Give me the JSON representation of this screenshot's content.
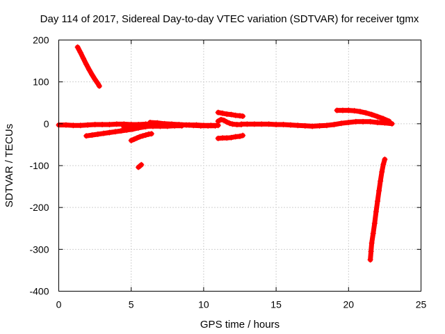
{
  "chart_data": {
    "type": "scatter",
    "title": "Day 114 of 2017, Sidereal Day-to-day VTEC variation (SDTVAR) for receiver tgmx",
    "xlabel": "GPS time / hours",
    "ylabel": "SDTVAR / TECUs",
    "xlim": [
      0,
      25
    ],
    "ylim": [
      -400,
      200
    ],
    "x_ticks": [
      0,
      5,
      10,
      15,
      20,
      25
    ],
    "y_ticks": [
      -400,
      -300,
      -200,
      -100,
      0,
      100,
      200
    ],
    "grid": true,
    "legend": "none",
    "marker": "+",
    "color": "#ff0000",
    "series": [
      {
        "x": [
          1.3,
          1.5,
          1.7,
          1.9,
          2.1,
          2.3,
          2.5,
          2.7,
          2.8
        ],
        "y": [
          183,
          170,
          156,
          142,
          129,
          117,
          106,
          96,
          90
        ]
      },
      {
        "x": [
          0,
          0.5,
          1.0,
          1.5,
          2.0,
          2.5,
          3.0,
          3.5,
          4.0,
          4.5,
          5.0,
          5.5,
          6.0,
          6.5,
          7.0,
          7.5,
          8.0,
          8.5,
          9.0,
          9.5,
          10.0,
          10.5,
          11.0
        ],
        "y": [
          -3,
          -3,
          -4,
          -4,
          -3,
          -2,
          -2,
          -2,
          -1,
          -1,
          -2,
          -2,
          -1,
          -1,
          -2,
          -2,
          -3,
          -3,
          -3,
          -3,
          -4,
          -4,
          -4
        ]
      },
      {
        "x": [
          1.9,
          2.3,
          2.7,
          3.1,
          3.5,
          3.9,
          4.3,
          4.7,
          5.1,
          5.5,
          6.0,
          6.5
        ],
        "y": [
          -29,
          -27,
          -25,
          -23,
          -21,
          -19,
          -17,
          -15,
          -13,
          -10,
          -7,
          -5
        ]
      },
      {
        "x": [
          5.0,
          5.2,
          5.4,
          5.6,
          5.8,
          6.0,
          6.2,
          6.4
        ],
        "y": [
          -40,
          -37,
          -34,
          -31,
          -29,
          -27,
          -25,
          -24
        ]
      },
      {
        "x": [
          5.5,
          5.6,
          5.7
        ],
        "y": [
          -104,
          -101,
          -98
        ]
      },
      {
        "x": [
          6.3,
          6.8,
          7.3,
          7.8,
          8.3,
          8.8,
          9.3,
          9.8,
          10.3,
          10.8
        ],
        "y": [
          3,
          2,
          0,
          -1,
          -2,
          -3,
          -4,
          -5,
          -5,
          -5
        ]
      },
      {
        "x": [
          4.5,
          5.0,
          5.5,
          6.0,
          6.5,
          7.0,
          7.5,
          8.0,
          8.5
        ],
        "y": [
          -8,
          -8,
          -7,
          -6,
          -6,
          -6,
          -6,
          -5,
          -5
        ]
      },
      {
        "x": [
          11.0,
          11.3,
          11.6,
          11.9,
          12.2,
          12.5,
          12.7
        ],
        "y": [
          27,
          25,
          23,
          22,
          20,
          19,
          18
        ]
      },
      {
        "x": [
          11.0,
          11.3,
          11.6,
          11.9,
          12.2,
          12.5,
          12.7
        ],
        "y": [
          -35,
          -34,
          -34,
          -33,
          -31,
          -30,
          -28
        ]
      },
      {
        "x": [
          11.0,
          11.2,
          11.4,
          11.6,
          11.8,
          12.0,
          12.3,
          12.6
        ],
        "y": [
          6,
          10,
          8,
          4,
          1,
          -1,
          -2,
          -2
        ]
      },
      {
        "x": [
          12.6,
          13.0,
          13.5,
          14.0,
          14.5,
          15.0,
          15.5,
          16.0,
          16.5,
          17.0,
          17.5,
          18.0,
          18.5,
          19.0,
          19.5,
          20.0,
          20.5,
          21.0,
          21.5,
          22.0,
          22.5,
          23.0
        ],
        "y": [
          -1,
          -1,
          -1,
          -1,
          -1,
          -2,
          -2,
          -3,
          -4,
          -5,
          -6,
          -5,
          -4,
          -2,
          1,
          3,
          5,
          5,
          5,
          3,
          2,
          0
        ]
      },
      {
        "x": [
          19.2,
          19.6,
          20.0,
          20.4,
          20.8,
          21.2,
          21.6,
          22.0,
          22.4,
          22.8
        ],
        "y": [
          32,
          32,
          32,
          31,
          29,
          26,
          22,
          17,
          12,
          6
        ]
      },
      {
        "x": [
          21.5,
          21.55,
          21.6,
          21.7,
          21.8,
          21.9,
          22.0,
          22.1,
          22.2,
          22.3,
          22.4,
          22.5
        ],
        "y": [
          -325,
          -305,
          -285,
          -262,
          -238,
          -210,
          -185,
          -160,
          -137,
          -115,
          -97,
          -85
        ]
      }
    ]
  }
}
